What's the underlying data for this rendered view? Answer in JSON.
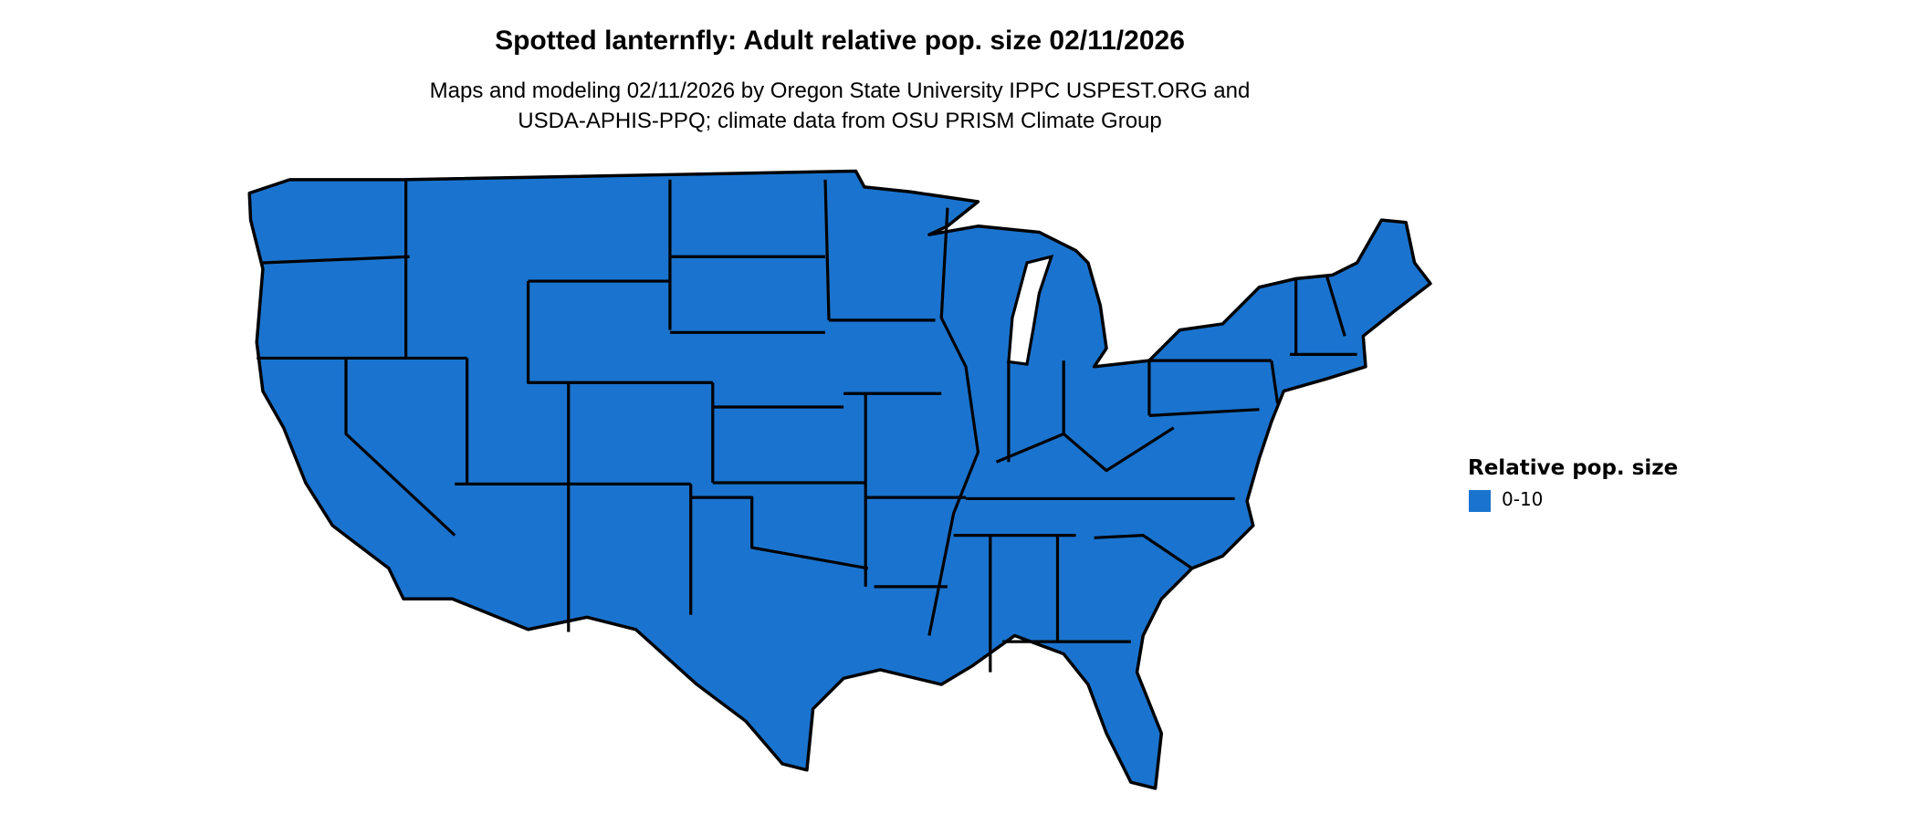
{
  "title": "Spotted lanternfly: Adult relative pop. size 02/11/2026",
  "subtitle_lines": [
    "Maps and modeling 02/11/2026 by Oregon State University IPPC USPEST.ORG and",
    "USDA-APHIS-PPQ; climate data from OSU PRISM Climate Group"
  ],
  "chart_data": {
    "type": "choropleth",
    "region": "Contiguous United States (state boundaries)",
    "legend": {
      "title": "Relative pop. size",
      "placement": "right",
      "entries": [
        {
          "label": "0-10",
          "color": "#1a74cf"
        }
      ]
    },
    "fill_category_all_regions": "0-10"
  },
  "colors": {
    "fill": "#1a74cf",
    "border": "#000000",
    "background": "#ffffff"
  }
}
